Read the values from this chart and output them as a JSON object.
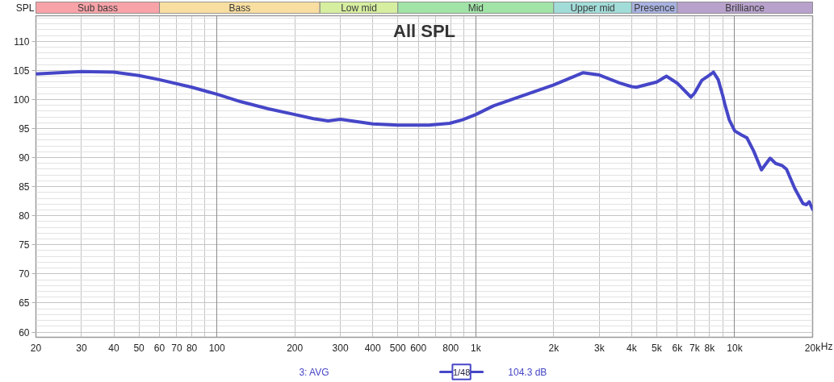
{
  "chart_data": [
    {
      "type": "bar",
      "orientation": "horizontal",
      "log": "x",
      "xlim": [
        20,
        20000
      ],
      "categories": [
        null
      ],
      "tick_labels": false,
      "series": [
        {
          "name": "Sub bass",
          "color": "#f8a3a8",
          "values": [
            40
          ],
          "base": [
            20
          ]
        },
        {
          "name": "Bass",
          "color": "#f8dea0",
          "values": [
            190
          ],
          "base": [
            60
          ]
        },
        {
          "name": "Low mid",
          "color": "#d6eea0",
          "values": [
            250
          ],
          "base": [
            250
          ]
        },
        {
          "name": "Mid",
          "color": "#a2e4a8",
          "values": [
            1500
          ],
          "base": [
            500
          ]
        },
        {
          "name": "Upper mid",
          "color": "#a2dcd8",
          "values": [
            2000
          ],
          "base": [
            2000
          ]
        },
        {
          "name": "Presence",
          "color": "#a8b2e0",
          "values": [
            2000
          ],
          "base": [
            4000
          ]
        },
        {
          "name": "Brilliance",
          "color": "#b8a2cc",
          "values": [
            14000
          ],
          "base": [
            6000
          ]
        }
      ]
    },
    {
      "type": "line",
      "title": "All SPL",
      "ylabel": "SPL",
      "xlabel": "Hz",
      "x": [
        20,
        30,
        40,
        50,
        60,
        80,
        100,
        124,
        158,
        200,
        236,
        269,
        300,
        400,
        500,
        659,
        793,
        889,
        1000,
        1170,
        1505,
        2000,
        2600,
        3000,
        3607,
        4000,
        4174,
        5000,
        5450,
        6000,
        6780,
        7000,
        7470,
        8000,
        8280,
        8640,
        9000,
        9185,
        9530,
        10000,
        10630,
        11150,
        11850,
        12690,
        13710,
        14390,
        15290,
        15860,
        17060,
        18350,
        18940,
        19410,
        20000
      ],
      "series": [
        {
          "name": "3: AVG",
          "color": "#4646c8",
          "values": [
            104.4,
            104.8,
            104.7,
            104.1,
            103.4,
            102.1,
            100.9,
            99.6,
            98.4,
            97.4,
            96.7,
            96.3,
            96.6,
            95.8,
            95.6,
            95.6,
            95.9,
            96.5,
            97.4,
            98.9,
            100.6,
            102.5,
            104.6,
            104.2,
            102.8,
            102.2,
            102.1,
            103.0,
            104.0,
            102.8,
            100.4,
            101.1,
            103.3,
            104.2,
            104.7,
            103.4,
            100.6,
            99.0,
            96.5,
            94.6,
            93.9,
            93.4,
            91.1,
            87.9,
            89.9,
            89.0,
            88.6,
            88.0,
            84.7,
            82.1,
            81.9,
            82.4,
            81.1
          ]
        }
      ],
      "log": "x",
      "xlim": [
        20,
        20000
      ],
      "ylim": [
        59.1,
        114.4
      ],
      "xticks": [
        20,
        30,
        40,
        50,
        60,
        70,
        80,
        {
          "value": 90,
          "label": null
        },
        100,
        200,
        300,
        400,
        500,
        600,
        {
          "value": 700,
          "label": null
        },
        800,
        {
          "value": 900,
          "label": null
        },
        {
          "value": 1000,
          "label": "1k"
        },
        {
          "value": 2000,
          "label": "2k"
        },
        {
          "value": 3000,
          "label": "3k"
        },
        {
          "value": 4000,
          "label": "4k"
        },
        {
          "value": 5000,
          "label": "5k"
        },
        {
          "value": 6000,
          "label": "6k"
        },
        {
          "value": 7000,
          "label": "7k"
        },
        {
          "value": 8000,
          "label": "8k"
        },
        {
          "value": 9000,
          "label": null
        },
        {
          "value": 10000,
          "label": "10k"
        },
        {
          "value": 20000,
          "label": "20k"
        }
      ],
      "yticks": [
        60,
        65,
        70,
        75,
        80,
        85,
        90,
        95,
        100,
        105,
        110
      ],
      "annotations": [
        "1/48",
        "104.3 dB"
      ],
      "grid": true,
      "legend": "bottom",
      "line_style": "solid"
    }
  ]
}
